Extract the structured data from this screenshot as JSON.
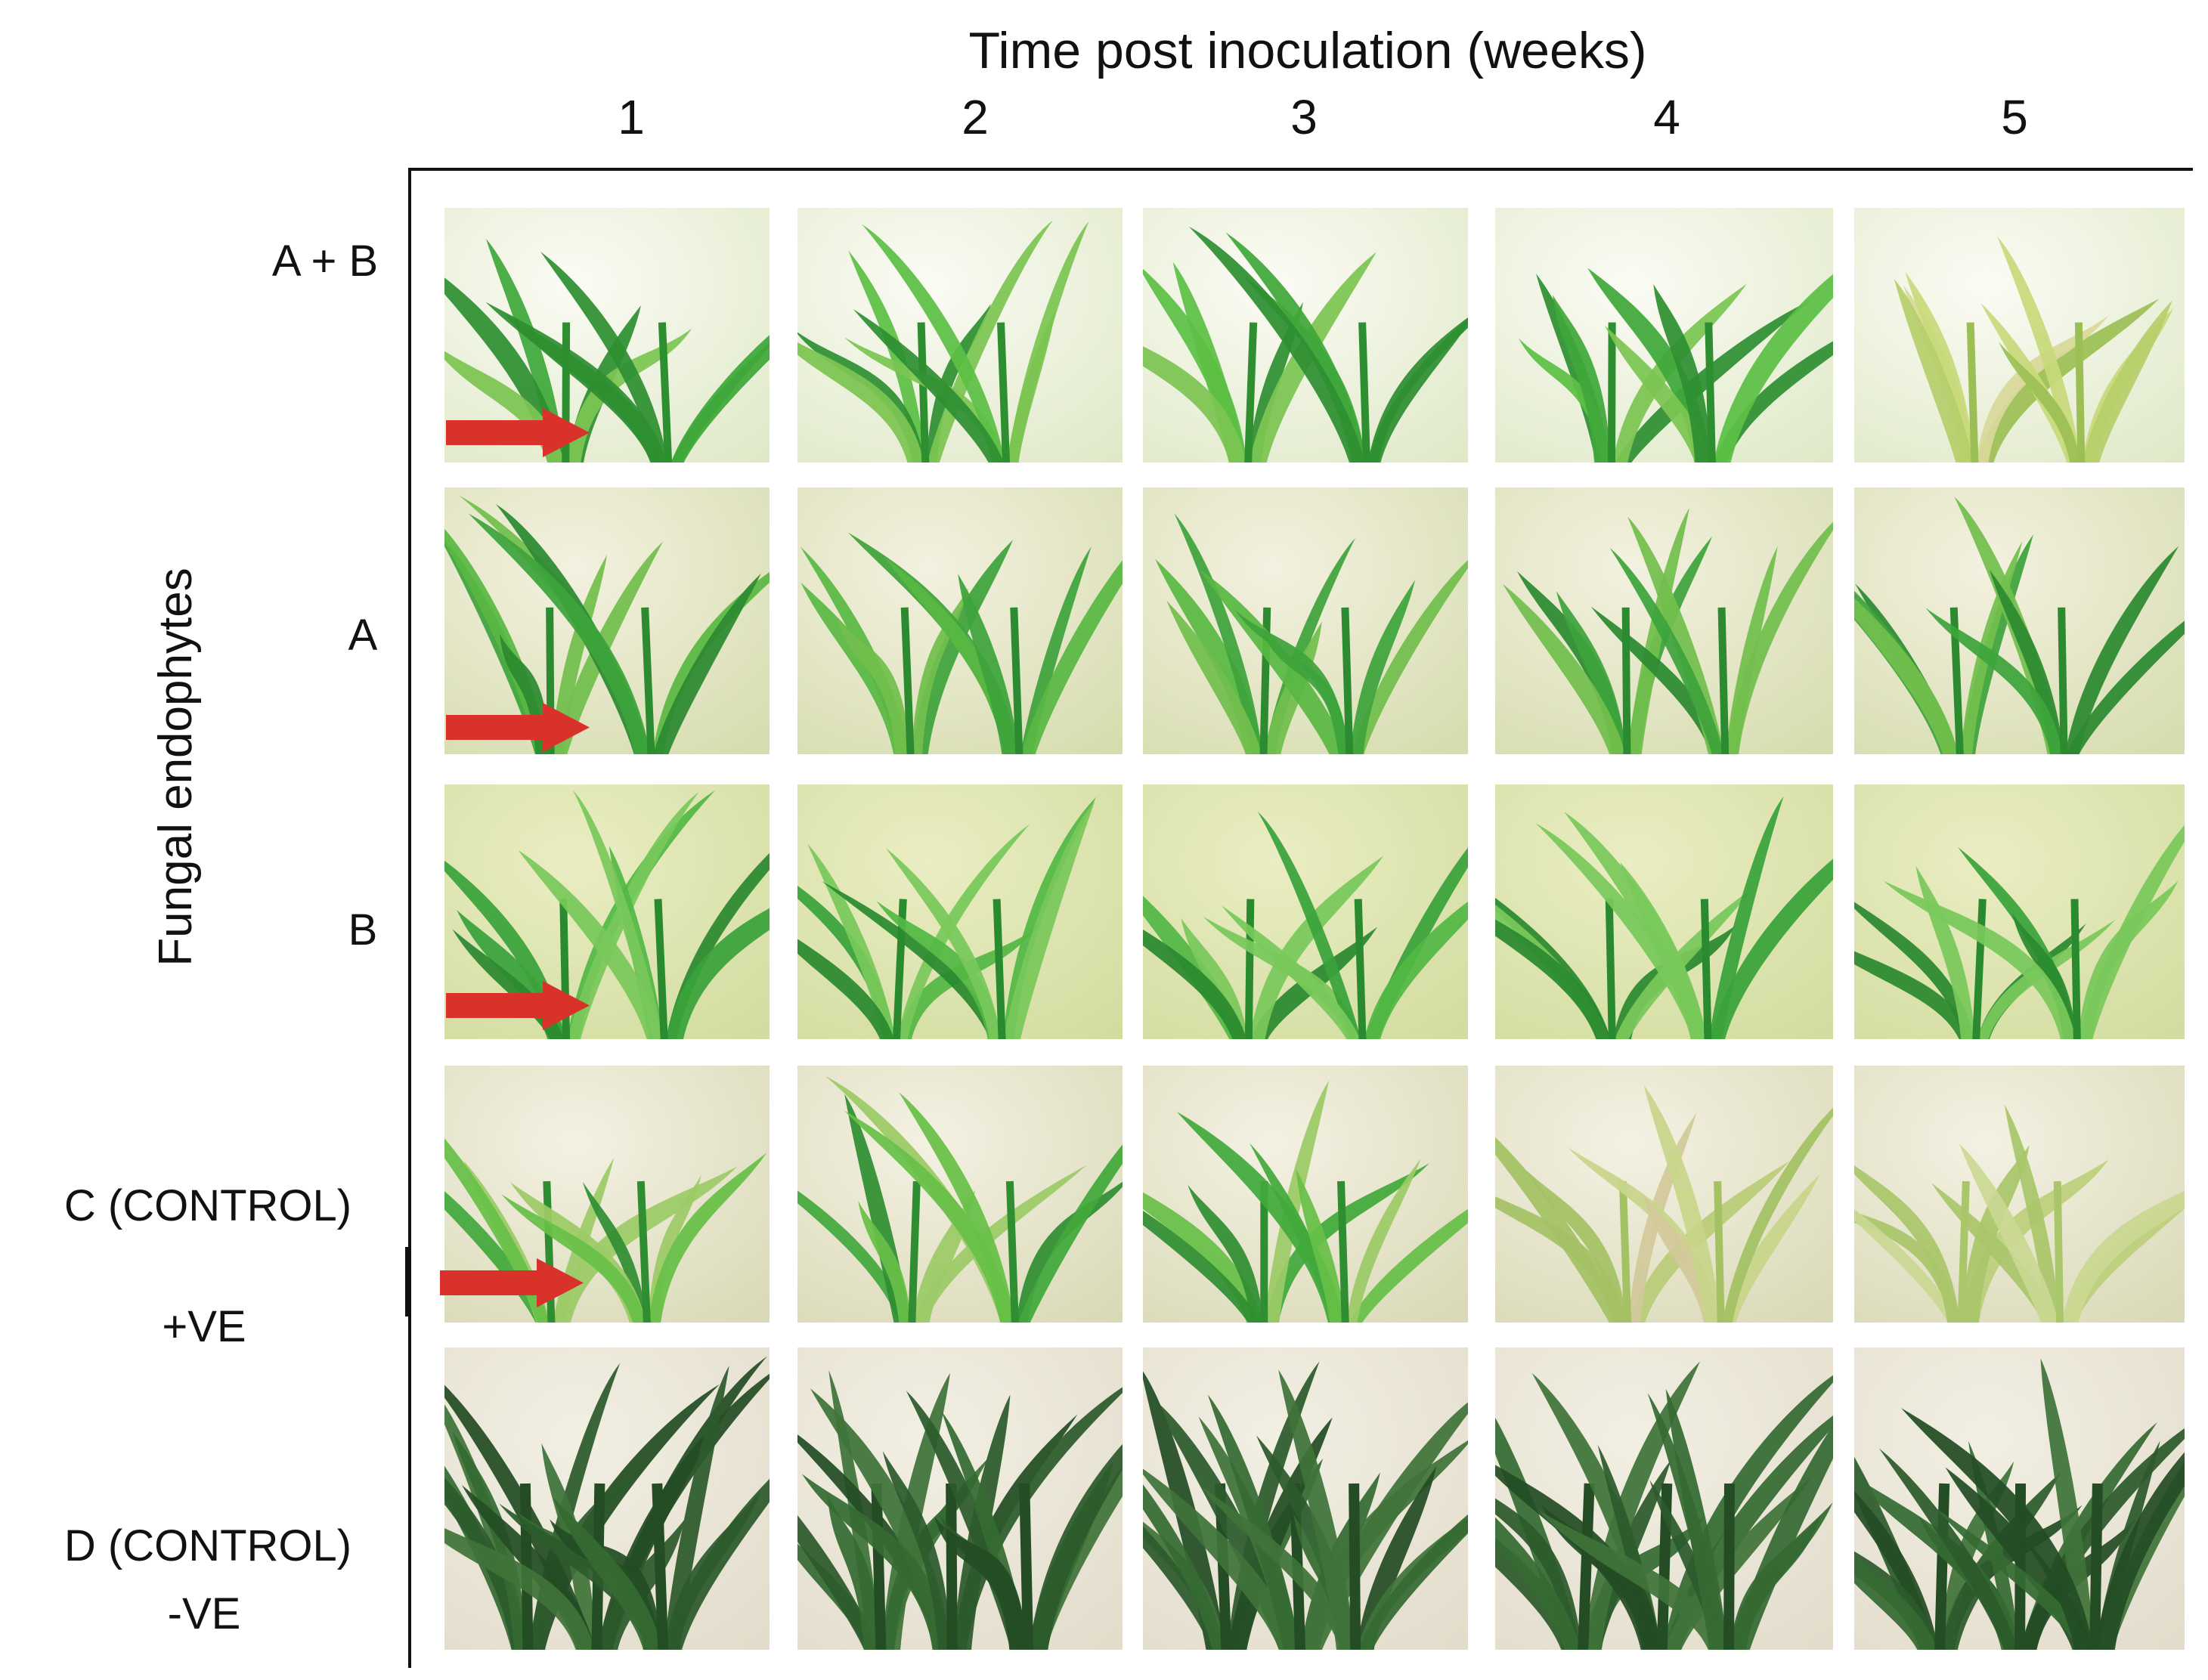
{
  "figure": {
    "x_axis_title": "Time post inoculation (weeks)",
    "y_axis_title": "Fungal endophytes",
    "weeks": [
      "1",
      "2",
      "3",
      "4",
      "5"
    ],
    "rows": [
      {
        "label": "A + B"
      },
      {
        "label": "A"
      },
      {
        "label": "B"
      },
      {
        "label": "C (CONTROL)",
        "label2": "+VE"
      },
      {
        "label": "D (CONTROL)",
        "label2": "-VE"
      }
    ]
  },
  "colors": {
    "arrow": "#d8322b",
    "leaf_fresh": "#3fa83a",
    "leaf_pale": "#a5cc62",
    "leaf_dark": "#2c5a2c",
    "background_cream": "#f2f0dc"
  }
}
